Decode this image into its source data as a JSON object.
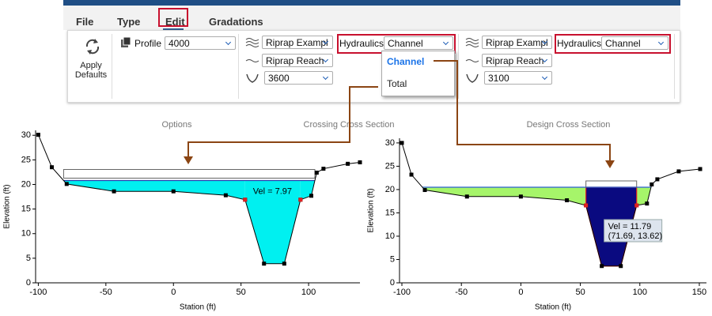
{
  "ribbon": {
    "tabs": [
      "File",
      "Type",
      "Edit",
      "Gradations"
    ],
    "apply_defaults": "Apply Defaults",
    "options": {
      "profile_label": "Profile",
      "profile": "4000",
      "group": "Options"
    },
    "crossing": {
      "riprap": "Riprap Exampl",
      "reach": "Riprap Reach",
      "station": "3600",
      "hydraulics_label": "Hydraulics",
      "hydraulics": "Channel",
      "group": "Crossing Cross Section"
    },
    "hydraulics_menu": [
      "Channel",
      "Total"
    ],
    "design": {
      "riprap": "Riprap Exampl",
      "reach": "Riprap Reach",
      "station": "3100",
      "hydraulics_label": "Hydraulics",
      "hydraulics": "Channel",
      "group": "Design Cross Section"
    }
  },
  "chart_data": [
    {
      "type": "cross_section",
      "x_label": "Station (ft)",
      "y_label": "Elevation (ft)",
      "xlim": [
        -102,
        138
      ],
      "ylim": [
        0,
        31
      ],
      "xticks": [
        -100,
        -50,
        0,
        50,
        100
      ],
      "yticks": [
        0,
        5,
        10,
        15,
        20,
        25,
        30
      ],
      "x": [
        -100,
        -90,
        -79,
        -44,
        0,
        38.7,
        53,
        67,
        82,
        94,
        102,
        106,
        111,
        129,
        138
      ],
      "y": [
        30.1,
        23.5,
        20.1,
        18.6,
        18.6,
        17.8,
        16.9,
        3.9,
        3.9,
        16.9,
        17.7,
        22.4,
        23.2,
        24.2,
        24.5
      ],
      "water_surface": 20.8,
      "bank_stations": [
        53,
        94
      ],
      "highlight": "total",
      "channel_color": "#00f0f0",
      "overbank_color": "#00f0f0",
      "water_line_color": "#2a3fb0",
      "bank_color": "#e02020",
      "velocity_label": "Vel = 7.97"
    },
    {
      "type": "cross_section",
      "x_label": "Station (ft)",
      "y_label": "Elevation (ft)",
      "xlim": [
        -102,
        156
      ],
      "ylim": [
        0,
        31
      ],
      "xticks": [
        -100,
        -50,
        0,
        50,
        100,
        150
      ],
      "yticks": [
        0,
        5,
        10,
        15,
        20,
        25,
        30
      ],
      "x": [
        -100,
        -92,
        -80.7,
        -45.3,
        0,
        38.7,
        54.7,
        68,
        84,
        97.3,
        106,
        110,
        114.7,
        132.7,
        150.7
      ],
      "y": [
        30,
        23.2,
        19.9,
        18.5,
        18.5,
        17.7,
        16.6,
        3.6,
        3.6,
        16.6,
        17,
        21.1,
        22.2,
        23.9,
        24.4
      ],
      "water_surface": 20.5,
      "bank_stations": [
        54.7,
        97.3
      ],
      "highlight": "channel",
      "channel_color": "#0a0a80",
      "overbank_color": "#a6f56a",
      "water_line_color": "#2a5fd0",
      "bank_color": "#e02020",
      "channel_outline": "#e02020",
      "velocity_label": "Vel = 11.79",
      "tooltip": "(71.69, 13.62)"
    }
  ]
}
